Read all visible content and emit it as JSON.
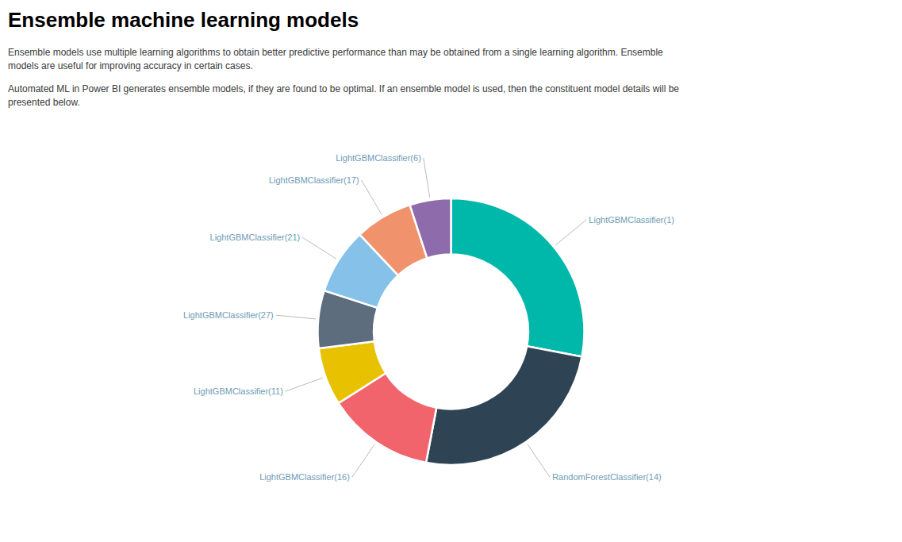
{
  "chart_data": {
    "type": "donut",
    "title": "Ensemble machine learning models",
    "subtitle": [
      [
        "Ensemble models use multiple learning algorithms to obtain better predictive performance than may be obtained from a single learning algorithm. Ensemble",
        "models are useful for improving accuracy in certain cases."
      ],
      [
        "Automated ML in Power BI generates ensemble models, if they are found to be optimal. If an ensemble model is used, then the constituent model details will be",
        "presented below."
      ]
    ],
    "categories": [
      "LightGBMClassifier(1)",
      "RandomForestClassifier(14)",
      "LightGBMClassifier(16)",
      "LightGBMClassifier(11)",
      "LightGBMClassifier(27)",
      "LightGBMClassifier(21)",
      "LightGBMClassifier(17)",
      "LightGBMClassifier(6)"
    ],
    "values": [
      28,
      25,
      13,
      7,
      7,
      8,
      7,
      5
    ],
    "colors": [
      "#00B8A9",
      "#2E4455",
      "#F1646C",
      "#E8C200",
      "#5D6D7E",
      "#85C1E9",
      "#F0936C",
      "#8E6BAB"
    ],
    "data_labels": false,
    "legend": false
  }
}
